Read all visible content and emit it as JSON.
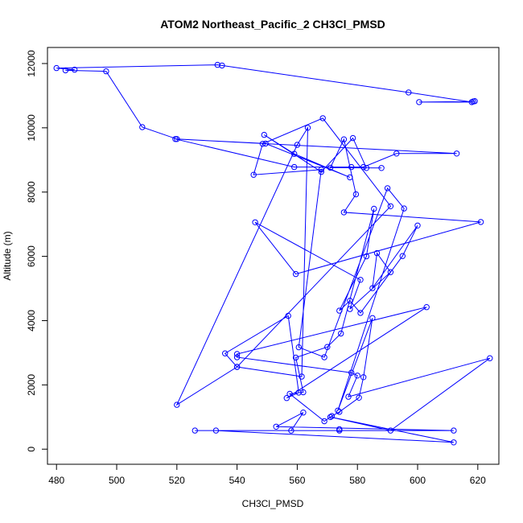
{
  "chart_data": {
    "type": "line",
    "title": "ATOM2 Northeast_Pacific_2 CH3Cl_PMSD",
    "xlabel": "CH3Cl_PMSD",
    "ylabel": "Altitude (m)",
    "xlim": [
      477,
      627
    ],
    "ylim": [
      -470,
      12500
    ],
    "xticks": [
      480,
      500,
      520,
      540,
      560,
      580,
      600,
      620
    ],
    "yticks": [
      0,
      2000,
      4000,
      6000,
      8000,
      10000,
      12000
    ],
    "grid": false,
    "legend": "none",
    "series": [
      {
        "color": "#0000ff",
        "marker": "open-circle",
        "x": [
          619.0,
          618.5,
          600.5,
          618.0,
          597.0,
          535.0,
          533.5,
          480.0,
          486.0,
          483.0,
          496.5,
          508.5,
          520.0,
          613.0,
          593.0,
          582.0,
          578.0,
          559.0,
          519.5,
          549.5,
          577.5,
          559.0,
          549.0,
          568.0,
          578.5,
          583.0,
          588.0,
          571.0,
          575.5,
          579.5,
          575.5,
          621.0,
          559.5,
          546.0,
          581.0,
          577.5,
          591.0,
          586.5,
          585.0,
          600.0,
          595.0,
          581.0,
          577.5,
          574.0,
          583.0,
          585.5,
          574.5,
          570.0,
          559.5,
          562.0,
          557.5,
          569.0,
          571.5,
          574.0,
          580.5,
          582.0,
          585.0,
          573.5,
          595.5,
          590.0,
          569.0,
          560.5,
          568.0,
          545.5,
          548.5,
          568.5,
          591.0,
          540.0,
          561.5,
          563.5,
          560.0,
          520.0,
          540.0,
          536.0,
          557.0,
          560.5,
          556.5,
          603.0,
          540.0,
          540.0,
          578.0,
          580.0,
          577.0,
          624.0,
          591.0,
          571.0,
          612.0,
          533.0,
          526.0,
          612.0,
          553.0,
          562.0,
          558.0,
          574.0,
          574.0
        ],
        "y": [
          10830,
          10820,
          10800,
          10800,
          11100,
          11940,
          11960,
          11860,
          11810,
          11790,
          11760,
          10020,
          9650,
          9200,
          9200,
          8780,
          8780,
          8780,
          9650,
          9510,
          8460,
          9190,
          9780,
          8630,
          9680,
          8750,
          8750,
          8760,
          9640,
          7930,
          7370,
          7070,
          5450,
          7060,
          5270,
          4360,
          5510,
          6100,
          5010,
          6960,
          6010,
          4240,
          4620,
          4310,
          6000,
          7480,
          3600,
          3180,
          2850,
          1770,
          1720,
          870,
          1030,
          1160,
          1600,
          2240,
          4080,
          1200,
          7490,
          8120,
          2860,
          3170,
          8700,
          8540,
          9500,
          10300,
          7560,
          2560,
          2260,
          10000,
          9470,
          1380,
          2560,
          2980,
          4150,
          1760,
          1590,
          4420,
          2960,
          2860,
          2380,
          2290,
          1630,
          2830,
          580,
          1000,
          210,
          580,
          580,
          580,
          700,
          1140,
          580,
          580,
          620
        ]
      }
    ]
  }
}
